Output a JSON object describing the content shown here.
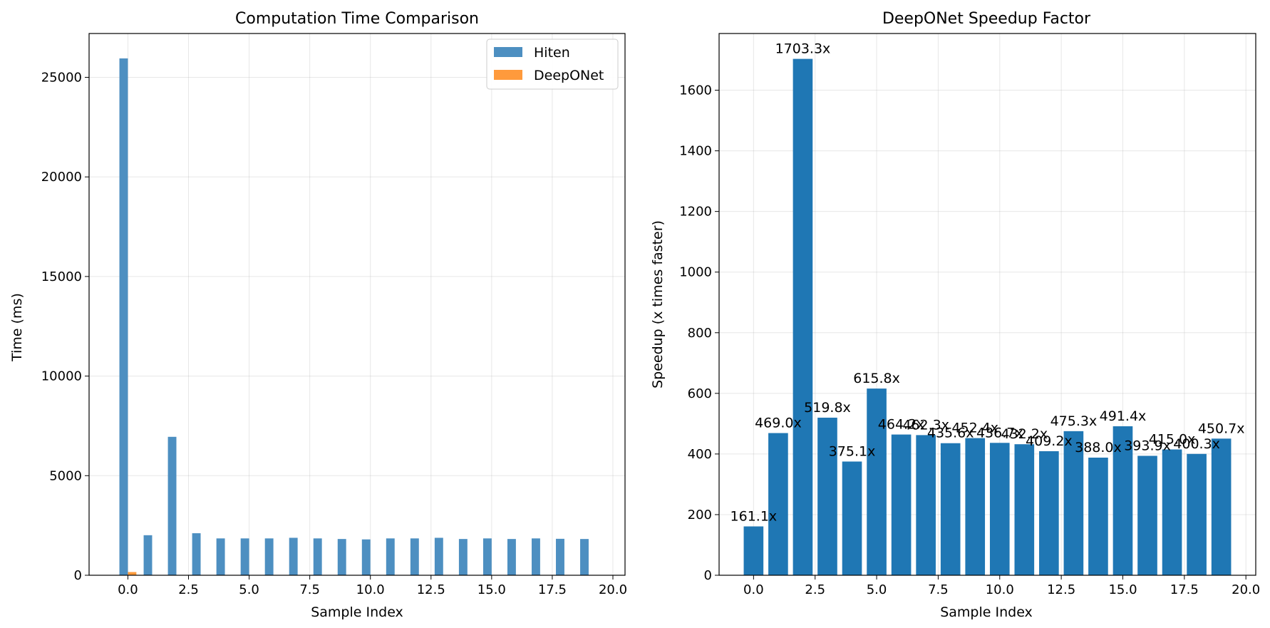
{
  "chart_data": [
    {
      "type": "bar",
      "title": "Computation Time Comparison",
      "xlabel": "Sample Index",
      "ylabel": "Time (ms)",
      "x": [
        0,
        1,
        2,
        3,
        4,
        5,
        6,
        7,
        8,
        9,
        10,
        11,
        12,
        13,
        14,
        15,
        16,
        17,
        18,
        19
      ],
      "xlim": [
        -1.6,
        20.5
      ],
      "ylim": [
        0,
        27200
      ],
      "xticks": [
        0.0,
        2.5,
        5.0,
        7.5,
        10.0,
        12.5,
        15.0,
        17.5,
        20.0
      ],
      "xtick_labels": [
        "0.0",
        "2.5",
        "5.0",
        "7.5",
        "10.0",
        "12.5",
        "15.0",
        "17.5",
        "20.0"
      ],
      "yticks": [
        0,
        5000,
        10000,
        15000,
        20000,
        25000
      ],
      "ytick_labels": [
        "0",
        "5000",
        "10000",
        "15000",
        "20000",
        "25000"
      ],
      "grid": true,
      "legend": "top-right",
      "series": [
        {
          "name": "Hiten",
          "color": "#4d8fc1",
          "values": [
            25950,
            2010,
            6950,
            2110,
            1850,
            1850,
            1850,
            1880,
            1850,
            1820,
            1800,
            1850,
            1850,
            1880,
            1820,
            1850,
            1820,
            1850,
            1830,
            1820
          ]
        },
        {
          "name": "DeepONet",
          "color": "#ff9a3c",
          "values": [
            161,
            4.3,
            4.1,
            4.1,
            4.9,
            3.0,
            4.0,
            4.1,
            4.2,
            4.0,
            4.1,
            4.3,
            4.5,
            4.0,
            4.7,
            3.8,
            4.6,
            4.5,
            4.6,
            4.0
          ]
        }
      ]
    },
    {
      "type": "bar",
      "title": "DeepONet Speedup Factor",
      "xlabel": "Sample Index",
      "ylabel": "Speedup (x times faster)",
      "x": [
        0,
        1,
        2,
        3,
        4,
        5,
        6,
        7,
        8,
        9,
        10,
        11,
        12,
        13,
        14,
        15,
        16,
        17,
        18,
        19
      ],
      "xlim": [
        -1.4,
        20.4
      ],
      "ylim": [
        0,
        1787
      ],
      "xticks": [
        0.0,
        2.5,
        5.0,
        7.5,
        10.0,
        12.5,
        15.0,
        17.5,
        20.0
      ],
      "xtick_labels": [
        "0.0",
        "2.5",
        "5.0",
        "7.5",
        "10.0",
        "12.5",
        "15.0",
        "17.5",
        "20.0"
      ],
      "yticks": [
        0,
        200,
        400,
        600,
        800,
        1000,
        1200,
        1400,
        1600
      ],
      "ytick_labels": [
        "0",
        "200",
        "400",
        "600",
        "800",
        "1000",
        "1200",
        "1400",
        "1600"
      ],
      "grid": true,
      "color": "#1f77b4",
      "values": [
        161.1,
        469.0,
        1703.3,
        519.8,
        375.1,
        615.8,
        464.2,
        462.3,
        435.6,
        452.4,
        436.7,
        432.2,
        409.2,
        475.3,
        388.0,
        491.4,
        393.9,
        415.0,
        400.3,
        450.7
      ],
      "labels": [
        "161.1x",
        "469.0x",
        "1703.3x",
        "519.8x",
        "375.1x",
        "615.8x",
        "464.2x",
        "462.3x",
        "435.6x",
        "452.4x",
        "436.7x",
        "432.2x",
        "409.2x",
        "475.3x",
        "388.0x",
        "491.4x",
        "393.9x",
        "415.0x",
        "400.3x",
        "450.7x"
      ]
    }
  ]
}
